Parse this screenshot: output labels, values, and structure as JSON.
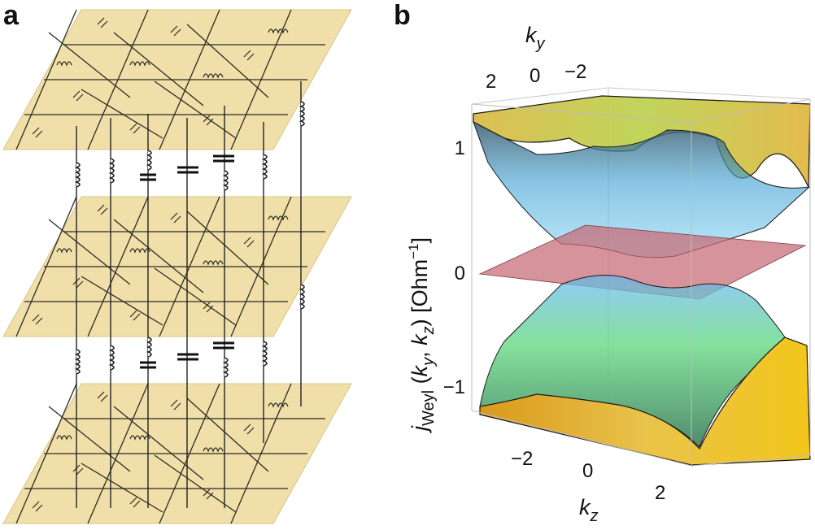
{
  "panels": {
    "a": {
      "label": "a"
    },
    "b": {
      "label": "b"
    }
  },
  "panel_b": {
    "ky_axis": {
      "label_main": "k",
      "label_sub": "y",
      "ticks": [
        "2",
        "0",
        "−2"
      ]
    },
    "kz_axis": {
      "label_main": "k",
      "label_sub": "z",
      "ticks": [
        "−2",
        "0",
        "2"
      ]
    },
    "j_axis": {
      "ticks": [
        "1",
        "0",
        "−1"
      ],
      "label_j": "j",
      "label_j_sub": "Weyl",
      "label_args_open": " (",
      "label_ky": "k",
      "label_ky_sub": "y",
      "label_comma": ", ",
      "label_kz": "k",
      "label_kz_sub": "z",
      "label_close": ") [Ohm",
      "label_exp": "−1",
      "label_end": "]"
    }
  },
  "colors": {
    "plane_fill": "#f1dfaa",
    "circuit_line": "#2b2b22",
    "zero_plane": "#c76a74",
    "band_top": "#b8cf46",
    "band_blue": "#6ab8e6",
    "band_green": "#8fe07a",
    "band_bottom": "#e6a81c"
  }
}
